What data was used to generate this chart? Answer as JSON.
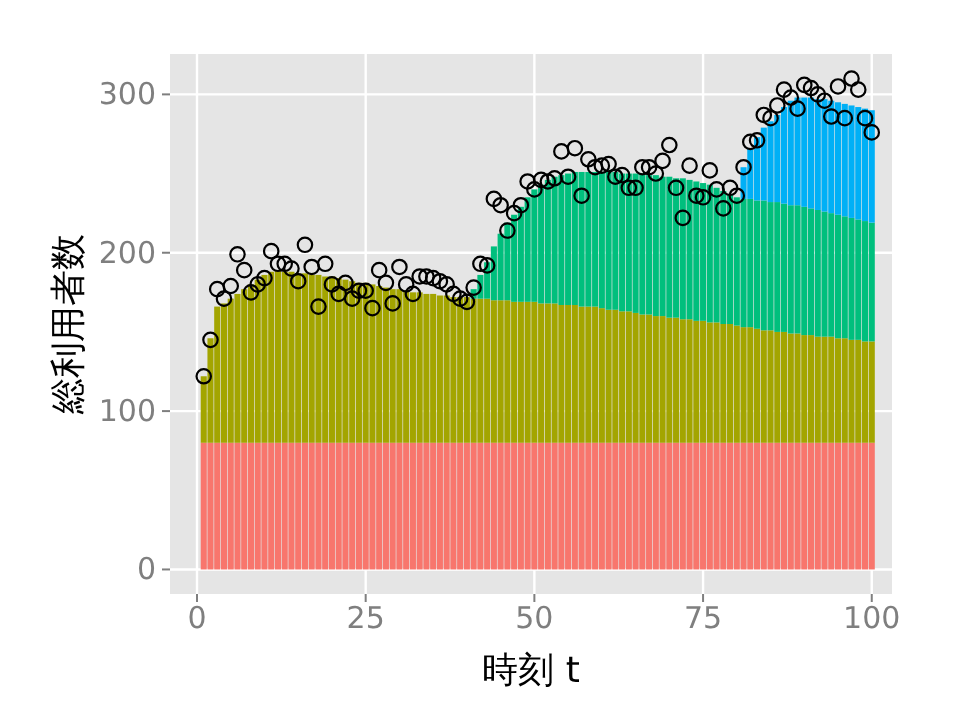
{
  "chart_data": {
    "type": "bar",
    "stacked": true,
    "xlabel": "時刻 t",
    "ylabel": "総利用者数",
    "grid": true,
    "xlim": [
      -4,
      103
    ],
    "ylim": [
      -15.5,
      325.5
    ],
    "xticks": [
      0,
      25,
      50,
      75,
      100
    ],
    "yticks": [
      0,
      100,
      200,
      300
    ],
    "x": [
      1,
      2,
      3,
      4,
      5,
      6,
      7,
      8,
      9,
      10,
      11,
      12,
      13,
      14,
      15,
      16,
      17,
      18,
      19,
      20,
      21,
      22,
      23,
      24,
      25,
      26,
      27,
      28,
      29,
      30,
      31,
      32,
      33,
      34,
      35,
      36,
      37,
      38,
      39,
      40,
      41,
      42,
      43,
      44,
      45,
      46,
      47,
      48,
      49,
      50,
      51,
      52,
      53,
      54,
      55,
      56,
      57,
      58,
      59,
      60,
      61,
      62,
      63,
      64,
      65,
      66,
      67,
      68,
      69,
      70,
      71,
      72,
      73,
      74,
      75,
      76,
      77,
      78,
      79,
      80,
      81,
      82,
      83,
      84,
      85,
      86,
      87,
      88,
      89,
      90,
      91,
      92,
      93,
      94,
      95,
      96,
      97,
      98,
      99,
      100
    ],
    "series": [
      {
        "color": "#f8766d",
        "values": [
          80,
          80,
          80,
          80,
          80,
          80,
          80,
          80,
          80,
          80,
          80,
          80,
          80,
          80,
          80,
          80,
          80,
          80,
          80,
          80,
          80,
          80,
          80,
          80,
          80,
          80,
          80,
          80,
          80,
          80,
          80,
          80,
          80,
          80,
          80,
          80,
          80,
          80,
          80,
          80,
          80,
          80,
          80,
          80,
          80,
          80,
          80,
          80,
          80,
          80,
          80,
          80,
          80,
          80,
          80,
          80,
          80,
          80,
          80,
          80,
          80,
          80,
          80,
          80,
          80,
          80,
          80,
          80,
          80,
          80,
          80,
          80,
          80,
          80,
          80,
          80,
          80,
          80,
          80,
          80,
          80,
          80,
          80,
          80,
          80,
          80,
          80,
          80,
          80,
          80,
          80,
          80,
          80,
          80,
          80,
          80,
          80,
          80,
          80,
          80
        ]
      },
      {
        "color": "#a3a500",
        "values": [
          42,
          66,
          86,
          88,
          91,
          94,
          97,
          100,
          103,
          106,
          108,
          109,
          108,
          108,
          107,
          107,
          106,
          106,
          105,
          105,
          104,
          103,
          102,
          101,
          101,
          100,
          99,
          98,
          97,
          97,
          96,
          95,
          95,
          94,
          94,
          93,
          93,
          92,
          92,
          92,
          91,
          91,
          91,
          90,
          90,
          90,
          89,
          89,
          89,
          89,
          88,
          88,
          88,
          87,
          87,
          87,
          86,
          86,
          86,
          85,
          84,
          84,
          83,
          83,
          82,
          81,
          81,
          80,
          80,
          79,
          79,
          78,
          78,
          77,
          77,
          76,
          76,
          75,
          75,
          74,
          73,
          73,
          72,
          71,
          71,
          70,
          70,
          69,
          69,
          68,
          68,
          67,
          67,
          67,
          66,
          66,
          65,
          65,
          64,
          64
        ]
      },
      {
        "color": "#00bf7d",
        "values": [
          null,
          null,
          null,
          null,
          null,
          null,
          null,
          null,
          null,
          null,
          null,
          null,
          null,
          null,
          null,
          null,
          null,
          null,
          null,
          null,
          null,
          null,
          null,
          null,
          null,
          null,
          null,
          null,
          null,
          null,
          null,
          null,
          null,
          null,
          null,
          null,
          null,
          null,
          null,
          null,
          6,
          15,
          23,
          34,
          42,
          49,
          55,
          60,
          66,
          71,
          75,
          78,
          80,
          82,
          83,
          84,
          85,
          85,
          85,
          86,
          87,
          87,
          87,
          87,
          88,
          89,
          88,
          89,
          88,
          89,
          88,
          89,
          88,
          88,
          87,
          87,
          85,
          84,
          82,
          81,
          81,
          81,
          81,
          82,
          81,
          82,
          81,
          81,
          81,
          81,
          80,
          80,
          79,
          78,
          78,
          77,
          77,
          76,
          76,
          75
        ]
      },
      {
        "color": "#00b0f6",
        "values": [
          null,
          null,
          null,
          null,
          null,
          null,
          null,
          null,
          null,
          null,
          null,
          null,
          null,
          null,
          null,
          null,
          null,
          null,
          null,
          null,
          null,
          null,
          null,
          null,
          null,
          null,
          null,
          null,
          null,
          null,
          null,
          null,
          null,
          null,
          null,
          null,
          null,
          null,
          null,
          null,
          null,
          null,
          null,
          null,
          null,
          null,
          null,
          null,
          null,
          null,
          null,
          null,
          null,
          null,
          null,
          null,
          null,
          null,
          null,
          null,
          null,
          null,
          null,
          null,
          null,
          null,
          null,
          null,
          null,
          null,
          null,
          null,
          null,
          null,
          null,
          null,
          null,
          null,
          null,
          null,
          20,
          32,
          40,
          46,
          51,
          55,
          61,
          66,
          68,
          69,
          70,
          70,
          71,
          71,
          71,
          71,
          71,
          71,
          71,
          71
        ]
      },
      {
        "type": "scatter",
        "marker": "circle",
        "color": "#000000",
        "values": [
          122,
          145,
          177,
          171,
          179,
          199,
          189,
          175,
          180,
          184,
          201,
          193,
          193,
          190,
          182,
          205,
          191,
          166,
          193,
          180,
          174,
          181,
          171,
          176,
          176,
          165,
          189,
          181,
          168,
          191,
          180,
          174,
          185,
          185,
          184,
          182,
          180,
          174,
          171,
          169,
          178,
          193,
          192,
          234,
          230,
          214,
          225,
          230,
          245,
          240,
          246,
          245,
          247,
          264,
          248,
          266,
          236,
          259,
          254,
          255,
          256,
          248,
          249,
          241,
          241,
          254,
          254,
          250,
          258,
          268,
          241,
          222,
          255,
          236,
          235,
          252,
          240,
          228,
          241,
          236,
          254,
          270,
          271,
          287,
          285,
          293,
          303,
          298,
          291,
          306,
          304,
          300,
          296,
          286,
          305,
          285,
          310,
          303,
          285,
          276
        ]
      }
    ]
  }
}
